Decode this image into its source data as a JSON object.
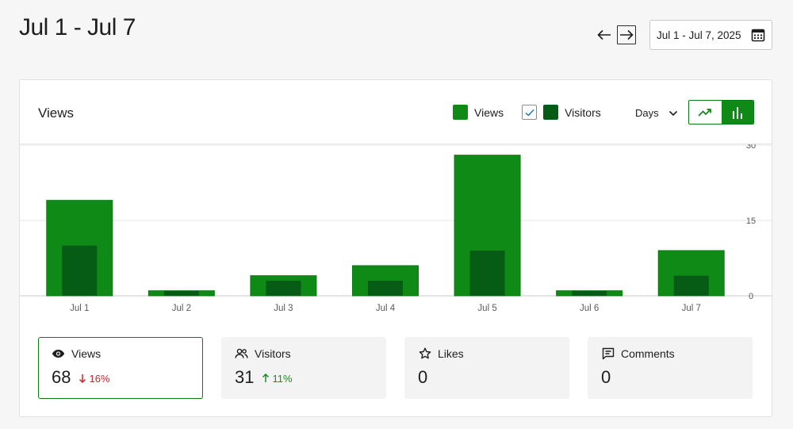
{
  "header": {
    "title": "Jul 1 - Jul 7",
    "date_range": "Jul 1 - Jul 7, 2025",
    "prev_icon": "arrow-left-icon",
    "next_icon": "arrow-right-icon",
    "calendar_icon": "calendar-icon"
  },
  "card": {
    "title": "Views",
    "legend": {
      "views_label": "Views",
      "visitors_label": "Visitors",
      "visitors_checked": true
    },
    "period_label": "Days",
    "chart_modes": [
      "line",
      "bar"
    ],
    "active_mode": "bar"
  },
  "colors": {
    "views": "#0f8a16",
    "visitors": "#075c15",
    "accent": "#0f7a15",
    "down": "#c4262d",
    "up": "#1d8a2a"
  },
  "chart_data": {
    "type": "bar",
    "categories": [
      "Jul 1",
      "Jul 2",
      "Jul 3",
      "Jul 4",
      "Jul 5",
      "Jul 6",
      "Jul 7"
    ],
    "series": [
      {
        "name": "Views",
        "values": [
          19,
          1,
          4,
          6,
          28,
          1,
          9
        ]
      },
      {
        "name": "Visitors",
        "values": [
          10,
          1,
          3,
          3,
          9,
          1,
          4
        ]
      }
    ],
    "yticks": [
      0,
      15,
      30
    ],
    "ylim": [
      0,
      30
    ],
    "y_axis_side": "right",
    "grid": true
  },
  "stats": [
    {
      "label": "Views",
      "value": "68",
      "delta": "16%",
      "direction": "down",
      "icon": "eye-icon",
      "active": true
    },
    {
      "label": "Visitors",
      "value": "31",
      "delta": "11%",
      "direction": "up",
      "icon": "people-icon",
      "active": false
    },
    {
      "label": "Likes",
      "value": "0",
      "delta": "",
      "direction": "",
      "icon": "star-icon",
      "active": false
    },
    {
      "label": "Comments",
      "value": "0",
      "delta": "",
      "direction": "",
      "icon": "comment-icon",
      "active": false
    }
  ]
}
